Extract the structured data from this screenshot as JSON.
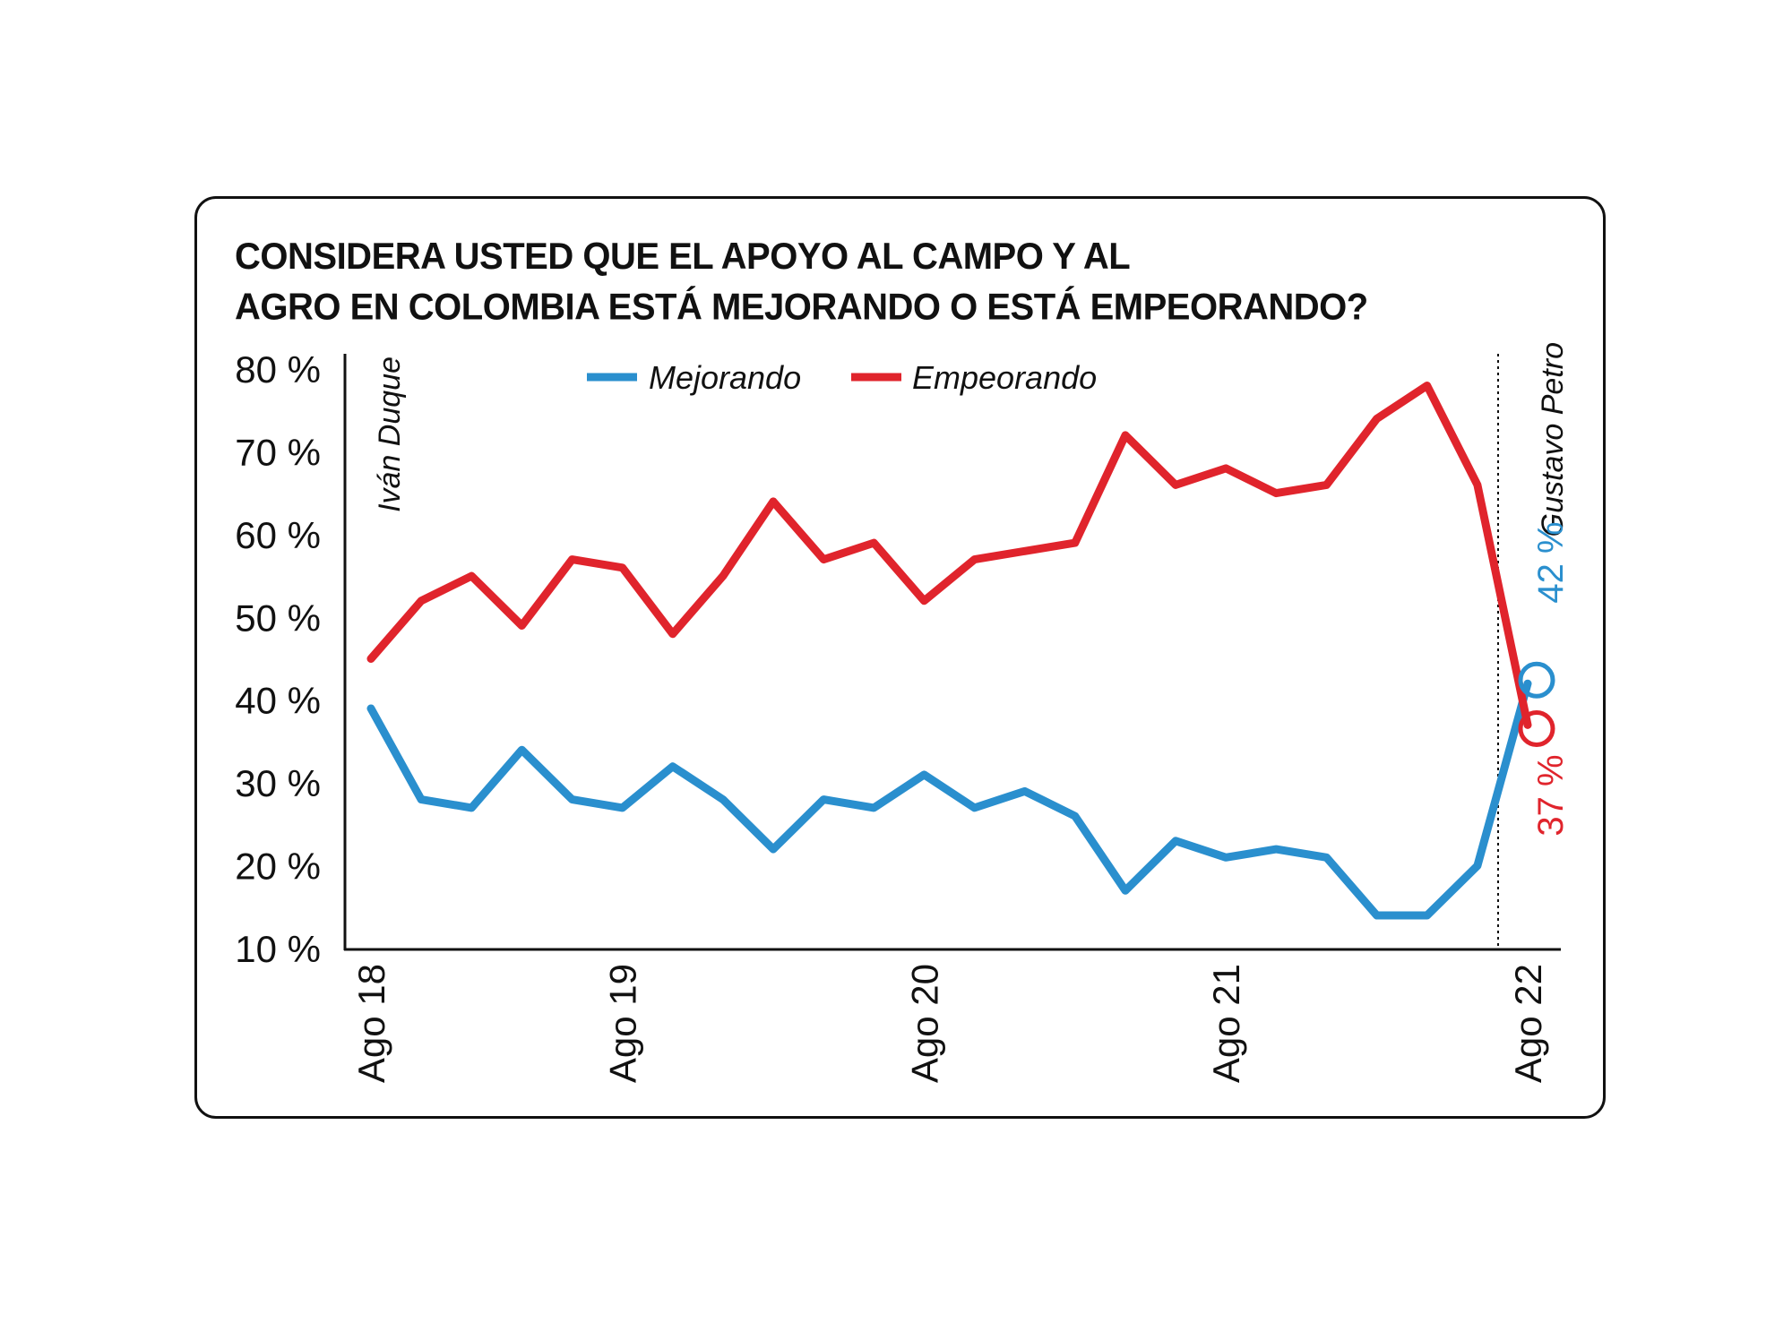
{
  "title_lines": [
    "CONSIDERA USTED QUE EL APOYO AL CAMPO Y AL",
    "AGRO EN COLOMBIA ESTÁ MEJORANDO O ESTÁ EMPEORANDO?"
  ],
  "colors": {
    "mejorando": "#2a8fce",
    "empeorando": "#e0242c",
    "axis": "#111111"
  },
  "chart_data": {
    "type": "line",
    "title": "CONSIDERA USTED QUE EL APOYO AL CAMPO Y AL AGRO EN COLOMBIA ESTÁ MEJORANDO O ESTÁ EMPEORANDO?",
    "x_tick_labels": [
      "Ago 18",
      "Ago 19",
      "Ago 20",
      "Ago 21",
      "Ago 22"
    ],
    "y_tick_labels": [
      "80 %",
      "70 %",
      "60 %",
      "50 %",
      "40 %",
      "30 %",
      "20 %",
      "10 %"
    ],
    "y_ticks": [
      80,
      70,
      60,
      50,
      40,
      30,
      20,
      10
    ],
    "ylim": [
      10,
      80
    ],
    "x_tick_index": [
      0,
      5,
      11,
      17,
      23
    ],
    "legend_position": "top-center",
    "series": [
      {
        "name": "Mejorando",
        "color": "#2a8fce",
        "values": [
          39,
          28,
          27,
          34,
          28,
          27,
          32,
          28,
          22,
          28,
          27,
          31,
          27,
          29,
          26,
          17,
          23,
          21,
          22,
          21,
          14,
          14,
          20,
          42
        ]
      },
      {
        "name": "Empeorando",
        "color": "#e0242c",
        "values": [
          45,
          52,
          55,
          49,
          57,
          56,
          48,
          55,
          64,
          57,
          59,
          52,
          57,
          58,
          59,
          72,
          66,
          68,
          65,
          66,
          74,
          78,
          66,
          37
        ]
      }
    ],
    "annotations": {
      "left_period": "Iván Duque",
      "right_period": "Gustavo Petro",
      "end_label_mejorando": "42 %",
      "end_label_empeorando": "37 %"
    }
  }
}
